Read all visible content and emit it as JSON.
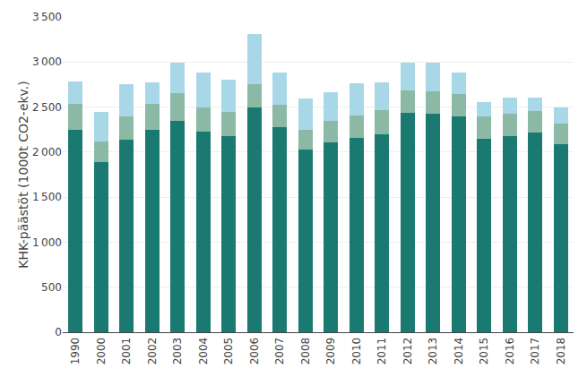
{
  "chart_data": {
    "type": "bar",
    "stacked": true,
    "ylabel": "KHK-päästöt (1000t CO2-ekv.)",
    "categories": [
      "1990",
      "2000",
      "2001",
      "2002",
      "2003",
      "2004",
      "2005",
      "2006",
      "2007",
      "2008",
      "2009",
      "2010",
      "2011",
      "2012",
      "2013",
      "2014",
      "2015",
      "2016",
      "2017",
      "2018"
    ],
    "series": [
      {
        "color": "#1a7a72",
        "values": [
          2250,
          1890,
          2140,
          2250,
          2350,
          2230,
          2180,
          2500,
          2280,
          2030,
          2110,
          2160,
          2200,
          2440,
          2430,
          2400,
          2150,
          2180,
          2215,
          2090
        ]
      },
      {
        "color": "#8cb9a5",
        "values": [
          285,
          225,
          260,
          285,
          300,
          270,
          265,
          255,
          250,
          215,
          235,
          245,
          265,
          240,
          240,
          245,
          250,
          250,
          245,
          230
        ]
      },
      {
        "color": "#a8d8e8",
        "values": [
          250,
          330,
          350,
          240,
          340,
          385,
          360,
          560,
          355,
          350,
          320,
          360,
          310,
          315,
          325,
          240,
          160,
          175,
          145,
          175
        ]
      }
    ],
    "ylim": [
      0,
      3500
    ],
    "yticks": [
      0,
      500,
      {
        "value": 1000,
        "label": "1 000"
      },
      {
        "value": 1500,
        "label": "1 500"
      },
      {
        "value": 2000,
        "label": "2 000"
      },
      {
        "value": 2500,
        "label": "2 500"
      },
      {
        "value": 3000,
        "label": "3 000"
      },
      {
        "value": 3500,
        "label": "3 500"
      }
    ],
    "grid": true
  }
}
